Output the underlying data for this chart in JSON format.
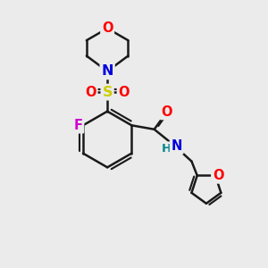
{
  "bg_color": "#ebebeb",
  "bond_color": "#1a1a1a",
  "bond_width": 1.8,
  "atom_colors": {
    "O": "#ff0000",
    "N_morph": "#0000dd",
    "N_amide": "#0000dd",
    "S": "#cccc00",
    "F": "#cc00cc",
    "H": "#008888",
    "C": "#1a1a1a"
  },
  "font_size": 10.5
}
